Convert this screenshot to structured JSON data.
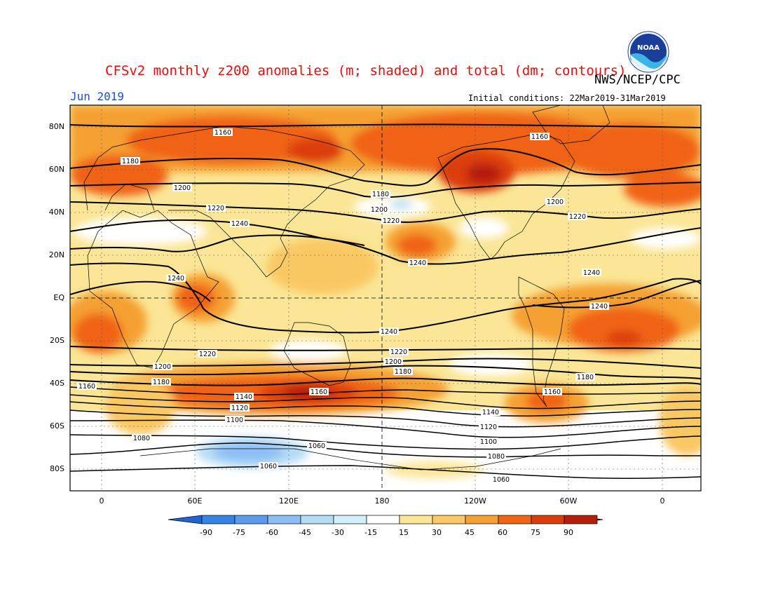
{
  "header": {
    "title": "CFSv2 monthly z200 anomalies (m; shaded) and total (dm; contours)",
    "org": "NWS/NCEP/CPC",
    "month": "Jun 2019",
    "initial_conditions": "Initial conditions: 22Mar2019-31Mar2019",
    "logo_text": "NOAA"
  },
  "axes": {
    "lat_labels": [
      "80N",
      "60N",
      "40N",
      "20N",
      "EQ",
      "20S",
      "40S",
      "60S",
      "80S"
    ],
    "lon_labels": [
      "0",
      "60E",
      "120E",
      "180",
      "120W",
      "60W",
      "0"
    ]
  },
  "colorbar": {
    "ticks": [
      "-90",
      "-75",
      "-60",
      "-45",
      "-30",
      "-15",
      "15",
      "30",
      "45",
      "60",
      "75",
      "90"
    ],
    "colors": [
      "#1e64d2",
      "#3782e6",
      "#5a9bf0",
      "#8cbef5",
      "#b4dcf5",
      "#d2f0fa",
      "#ffffff",
      "#fae696",
      "#fac864",
      "#f5a032",
      "#f06414",
      "#dc3c0a",
      "#b41e0a",
      "#a00a0a"
    ]
  },
  "contour_labels": [
    "1160",
    "1180",
    "1200",
    "1220",
    "1240",
    "1240",
    "1240",
    "1240",
    "1240",
    "1220",
    "1200",
    "1180",
    "1160",
    "1140",
    "1120",
    "1100",
    "1080",
    "1060",
    "1160",
    "1180",
    "1200",
    "1220",
    "1180",
    "1200",
    "1220",
    "1240",
    "1220",
    "1200",
    "1180",
    "1160",
    "1140",
    "1120",
    "1100",
    "1080",
    "1060",
    "1160",
    "1060"
  ]
}
